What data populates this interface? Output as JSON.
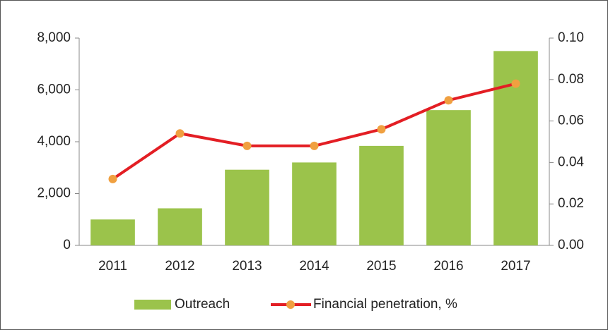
{
  "chart_data": {
    "type": "combo",
    "categories": [
      "2011",
      "2012",
      "2013",
      "2014",
      "2015",
      "2016",
      "2017"
    ],
    "series": [
      {
        "name": "Outreach",
        "type": "bar",
        "color": "#9bc34b",
        "values": [
          1000,
          1430,
          2920,
          3200,
          3840,
          5220,
          7500
        ]
      },
      {
        "name": "Financial penetration, %",
        "type": "line",
        "axis": "y2",
        "color": "#e31e24",
        "marker_color": "#f0a040",
        "values": [
          0.032,
          0.054,
          0.048,
          0.048,
          0.056,
          0.07,
          0.078
        ]
      }
    ],
    "ylim": [
      0,
      8000
    ],
    "yticks": [
      0,
      {
        "value": 2000,
        "label": "2,000"
      },
      {
        "value": 4000,
        "label": "4,000"
      },
      {
        "value": 6000,
        "label": "6,000"
      },
      {
        "value": 8000,
        "label": "8,000"
      }
    ],
    "y2lim": [
      0,
      0.1
    ],
    "y2ticks": [
      {
        "value": 0,
        "label": "0.00"
      },
      0.02,
      0.04,
      0.06,
      0.08,
      {
        "value": 0.1,
        "label": "0.10"
      }
    ],
    "grid": false,
    "legend": "bottom"
  }
}
